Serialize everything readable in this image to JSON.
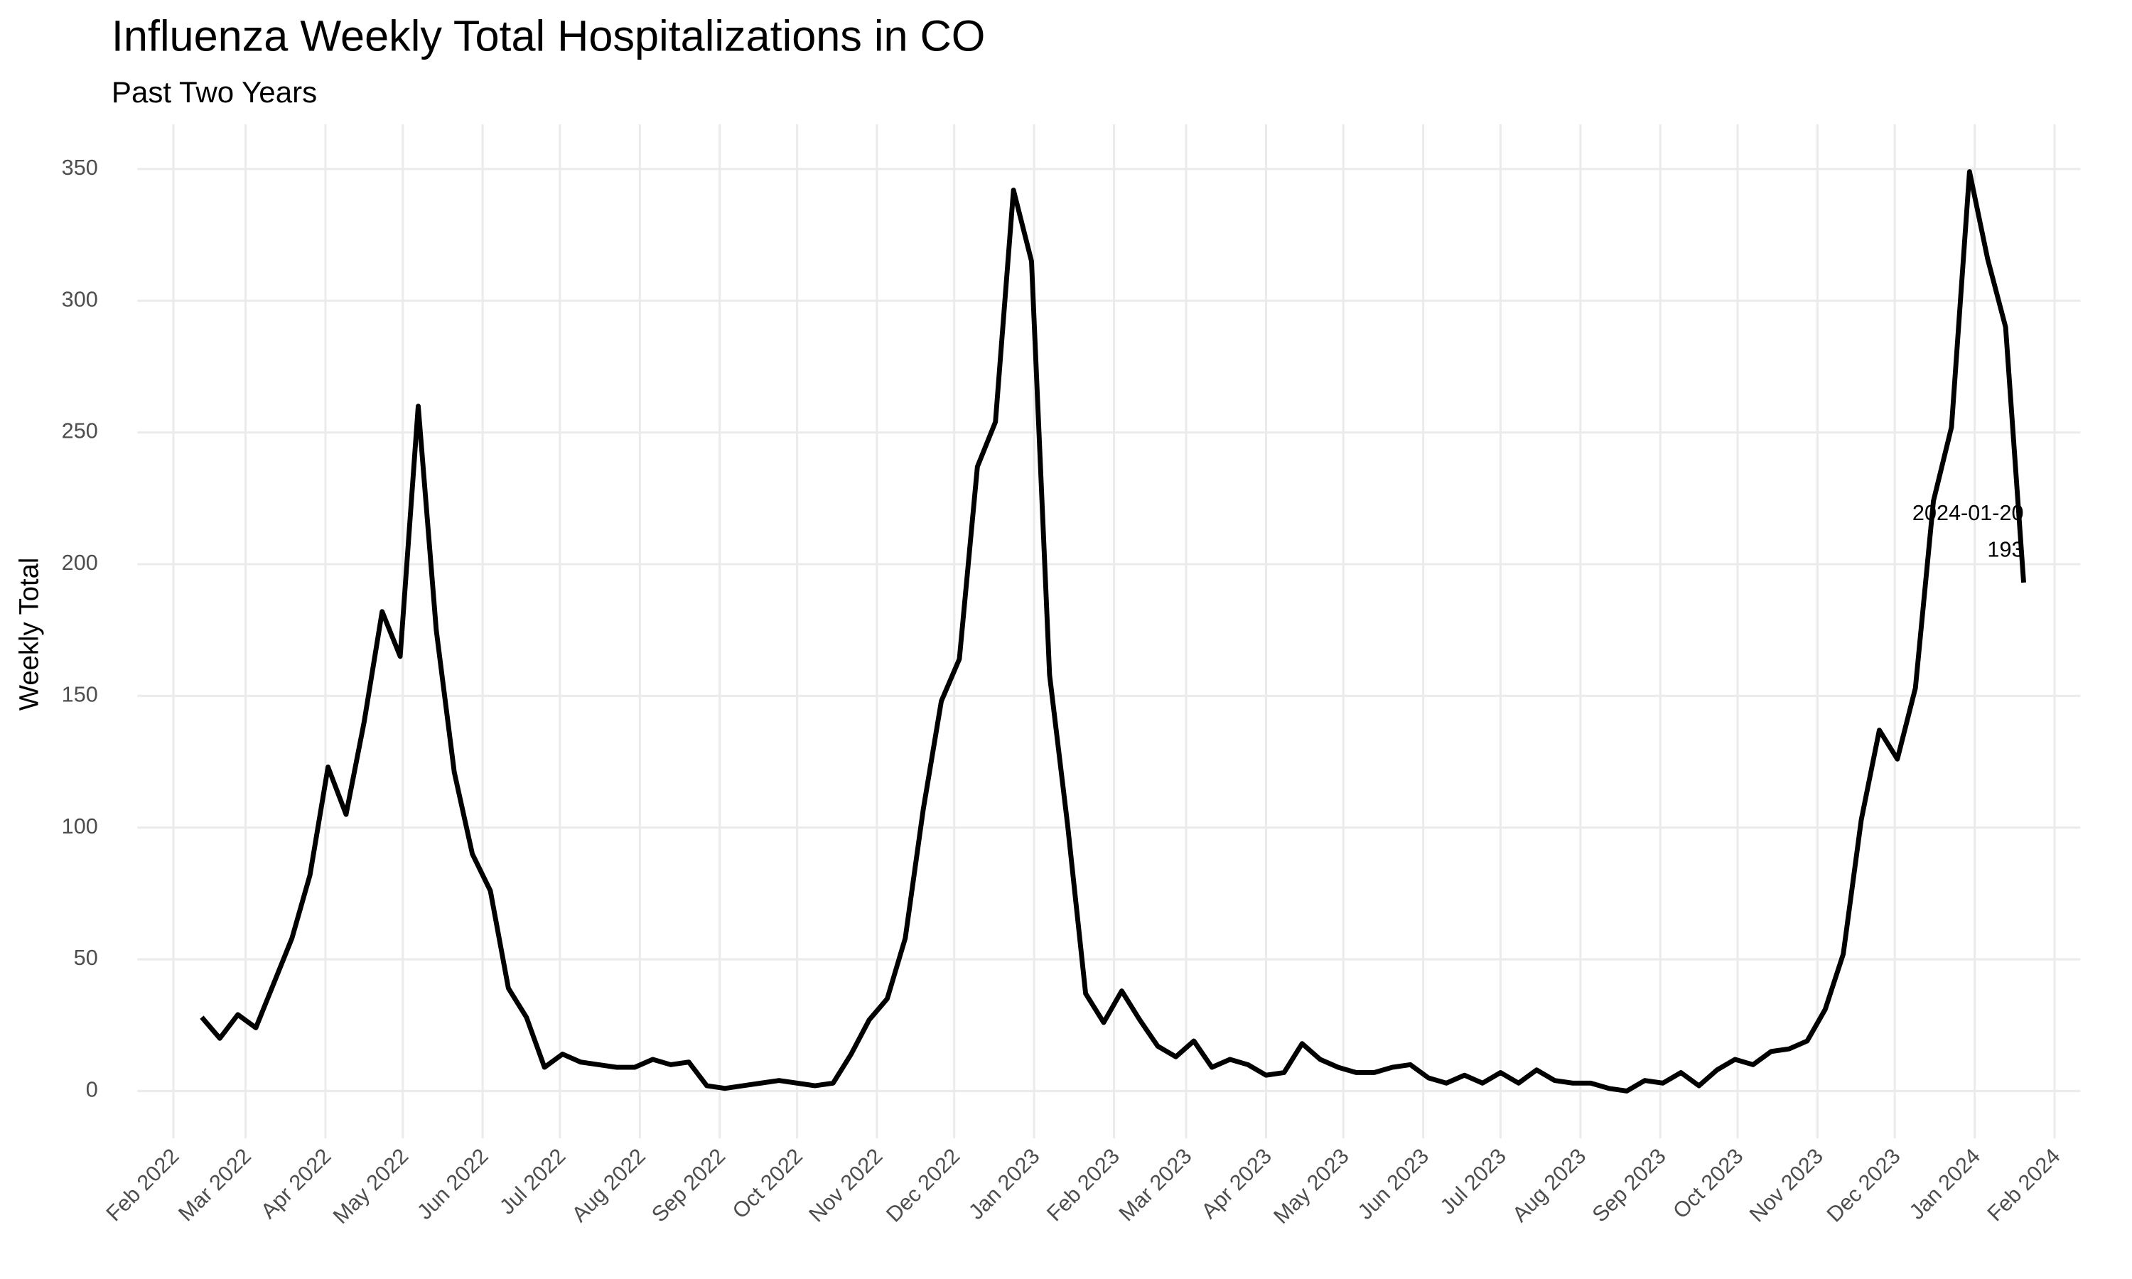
{
  "chart_data": {
    "type": "line",
    "title": "Influenza Weekly Total Hospitalizations in CO",
    "subtitle": "Past Two Years",
    "y_label": "Weekly Total",
    "color": "#000000",
    "grid": true,
    "x": [
      "2022-02-12",
      "2022-02-19",
      "2022-02-26",
      "2022-03-05",
      "2022-03-12",
      "2022-03-19",
      "2022-03-26",
      "2022-04-02",
      "2022-04-09",
      "2022-04-16",
      "2022-04-23",
      "2022-04-30",
      "2022-05-07",
      "2022-05-14",
      "2022-05-21",
      "2022-05-28",
      "2022-06-04",
      "2022-06-11",
      "2022-06-18",
      "2022-06-25",
      "2022-07-02",
      "2022-07-09",
      "2022-07-16",
      "2022-07-23",
      "2022-07-30",
      "2022-08-06",
      "2022-08-13",
      "2022-08-20",
      "2022-08-27",
      "2022-09-03",
      "2022-09-10",
      "2022-09-17",
      "2022-09-24",
      "2022-10-01",
      "2022-10-08",
      "2022-10-15",
      "2022-10-22",
      "2022-10-29",
      "2022-11-05",
      "2022-11-12",
      "2022-11-19",
      "2022-11-26",
      "2022-12-03",
      "2022-12-10",
      "2022-12-17",
      "2022-12-24",
      "2022-12-31",
      "2023-01-07",
      "2023-01-14",
      "2023-01-21",
      "2023-01-28",
      "2023-02-04",
      "2023-02-11",
      "2023-02-18",
      "2023-02-25",
      "2023-03-04",
      "2023-03-11",
      "2023-03-18",
      "2023-03-25",
      "2023-04-01",
      "2023-04-08",
      "2023-04-15",
      "2023-04-22",
      "2023-04-29",
      "2023-05-06",
      "2023-05-13",
      "2023-05-20",
      "2023-05-27",
      "2023-06-03",
      "2023-06-10",
      "2023-06-17",
      "2023-06-24",
      "2023-07-01",
      "2023-07-08",
      "2023-07-15",
      "2023-07-22",
      "2023-07-29",
      "2023-08-05",
      "2023-08-12",
      "2023-08-19",
      "2023-08-26",
      "2023-09-02",
      "2023-09-09",
      "2023-09-16",
      "2023-09-23",
      "2023-09-30",
      "2023-10-07",
      "2023-10-14",
      "2023-10-21",
      "2023-10-28",
      "2023-11-04",
      "2023-11-11",
      "2023-11-18",
      "2023-11-25",
      "2023-12-02",
      "2023-12-09",
      "2023-12-16",
      "2023-12-23",
      "2023-12-30",
      "2024-01-06",
      "2024-01-13",
      "2024-01-20"
    ],
    "values": [
      28,
      20,
      29,
      24,
      41,
      58,
      82,
      123,
      105,
      140,
      182,
      165,
      260,
      175,
      121,
      90,
      76,
      39,
      28,
      9,
      14,
      11,
      10,
      9,
      9,
      12,
      10,
      11,
      2,
      1,
      2,
      3,
      4,
      3,
      2,
      3,
      14,
      27,
      35,
      58,
      107,
      148,
      164,
      237,
      254,
      342,
      315,
      158,
      101,
      37,
      26,
      38,
      27,
      17,
      13,
      19,
      9,
      12,
      10,
      6,
      7,
      18,
      12,
      9,
      7,
      7,
      9,
      10,
      5,
      3,
      6,
      3,
      7,
      3,
      8,
      4,
      3,
      3,
      1,
      0,
      4,
      3,
      7,
      2,
      8,
      12,
      10,
      15,
      16,
      19,
      31,
      52,
      103,
      137,
      126,
      153,
      224,
      252,
      349,
      316,
      290,
      193
    ],
    "xlim": [
      "2022-01-18",
      "2024-02-11"
    ],
    "xticks": [
      {
        "value": "2022-02-01",
        "label": "Feb 2022"
      },
      {
        "value": "2022-03-01",
        "label": "Mar 2022"
      },
      {
        "value": "2022-04-01",
        "label": "Apr 2022"
      },
      {
        "value": "2022-05-01",
        "label": "May 2022"
      },
      {
        "value": "2022-06-01",
        "label": "Jun 2022"
      },
      {
        "value": "2022-07-01",
        "label": "Jul 2022"
      },
      {
        "value": "2022-08-01",
        "label": "Aug 2022"
      },
      {
        "value": "2022-09-01",
        "label": "Sep 2022"
      },
      {
        "value": "2022-10-01",
        "label": "Oct 2022"
      },
      {
        "value": "2022-11-01",
        "label": "Nov 2022"
      },
      {
        "value": "2022-12-01",
        "label": "Dec 2022"
      },
      {
        "value": "2023-01-01",
        "label": "Jan 2023"
      },
      {
        "value": "2023-02-01",
        "label": "Feb 2023"
      },
      {
        "value": "2023-03-01",
        "label": "Mar 2023"
      },
      {
        "value": "2023-04-01",
        "label": "Apr 2023"
      },
      {
        "value": "2023-05-01",
        "label": "May 2023"
      },
      {
        "value": "2023-06-01",
        "label": "Jun 2023"
      },
      {
        "value": "2023-07-01",
        "label": "Jul 2023"
      },
      {
        "value": "2023-08-01",
        "label": "Aug 2023"
      },
      {
        "value": "2023-09-01",
        "label": "Sep 2023"
      },
      {
        "value": "2023-10-01",
        "label": "Oct 2023"
      },
      {
        "value": "2023-11-01",
        "label": "Nov 2023"
      },
      {
        "value": "2023-12-01",
        "label": "Dec 2023"
      },
      {
        "value": "2024-01-01",
        "label": "Jan 2024"
      },
      {
        "value": "2024-02-01",
        "label": "Feb 2024"
      }
    ],
    "ylim": [
      -18,
      367
    ],
    "yticks": [
      0,
      50,
      100,
      150,
      200,
      250,
      300,
      350
    ],
    "annotations": [
      {
        "x": "2024-01-20",
        "y": 193
      }
    ]
  }
}
